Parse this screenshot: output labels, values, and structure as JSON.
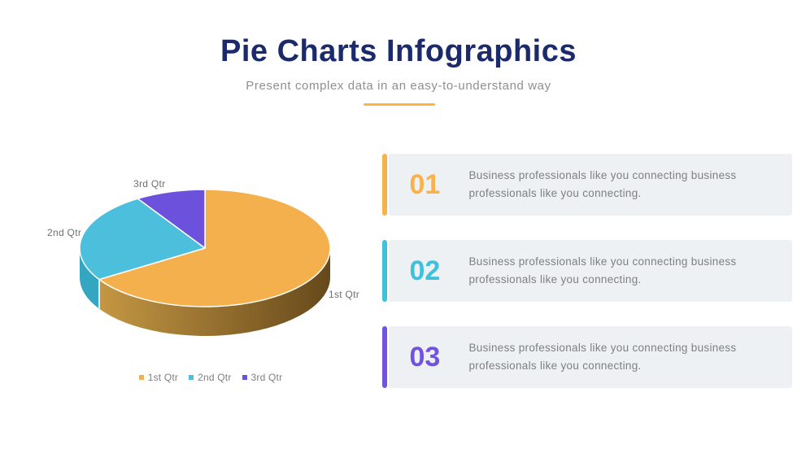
{
  "header": {
    "title": "Pie Charts Infographics",
    "subtitle": "Present complex data in an easy-to-understand way",
    "divider_color": "#FFB43F",
    "title_color": "#1B2A6B"
  },
  "chart_data": {
    "type": "pie",
    "style": "3d",
    "legend_position": "bottom",
    "slices": [
      {
        "label": "1st Qtr",
        "value": 66,
        "color": "#F5B04E",
        "side_gradient": [
          "#C49743",
          "#66491B"
        ]
      },
      {
        "label": "2nd Qtr",
        "value": 25,
        "color": "#4BBFDB",
        "side_gradient": [
          "#35A6C2",
          "#35A6C2"
        ]
      },
      {
        "label": "3rd Qtr",
        "value": 9,
        "color": "#6C51DC",
        "side_gradient": [
          "#4F39B0",
          "#4F39B0"
        ]
      }
    ]
  },
  "items": [
    {
      "number": "01",
      "color": "#F7B24C",
      "text": "Business professionals like you connecting business professionals like you connecting."
    },
    {
      "number": "02",
      "color": "#3EC1DC",
      "text": "Business professionals like you connecting business professionals like you connecting."
    },
    {
      "number": "03",
      "color": "#7252E0",
      "text": "Business professionals like you connecting business professionals like you connecting."
    }
  ],
  "colors": {
    "card_bg": "#EDF1F4"
  }
}
